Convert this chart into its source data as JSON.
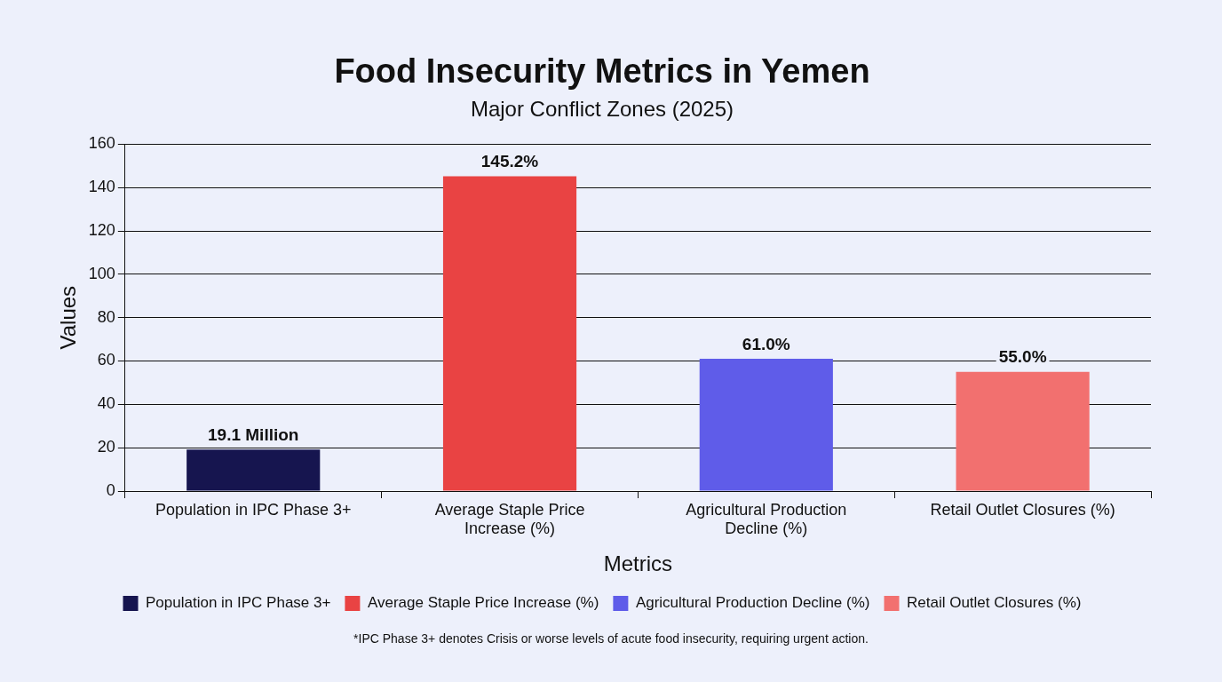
{
  "chart_data": {
    "type": "bar",
    "title": "Food Insecurity Metrics in Yemen",
    "subtitle": "Major Conflict Zones (2025)",
    "xlabel": "Metrics",
    "ylabel": "Values",
    "categories": [
      "Population in IPC Phase 3+",
      "Average Staple Price Increase (%)",
      "Agricultural Production Decline (%)",
      "Retail Outlet Closures (%)"
    ],
    "series": [
      {
        "name": "Population in IPC Phase 3+",
        "color": "#16154f",
        "values": [
          19.1,
          null,
          null,
          null
        ],
        "value_labels": [
          "19.1 Million",
          null,
          null,
          null
        ]
      },
      {
        "name": "Average Staple Price Increase (%)",
        "color": "#e94343",
        "values": [
          null,
          145.2,
          null,
          null
        ],
        "value_labels": [
          null,
          "145.2%",
          null,
          null
        ]
      },
      {
        "name": "Agricultural Production Decline (%)",
        "color": "#5f5ce9",
        "values": [
          null,
          null,
          61.0,
          null
        ],
        "value_labels": [
          null,
          null,
          "61.0%",
          null
        ]
      },
      {
        "name": "Retail Outlet Closures (%)",
        "color": "#f2706f",
        "values": [
          null,
          null,
          null,
          55.0
        ],
        "value_labels": [
          null,
          null,
          null,
          "55.0%"
        ]
      }
    ],
    "ylim": [
      0,
      160
    ],
    "yticks": [
      0,
      20,
      40,
      60,
      80,
      100,
      120,
      140,
      160
    ],
    "grid": "y",
    "legend": "bottom",
    "annotations": [
      "*IPC Phase 3+ denotes Crisis or worse levels of acute food insecurity, requiring urgent action."
    ]
  }
}
